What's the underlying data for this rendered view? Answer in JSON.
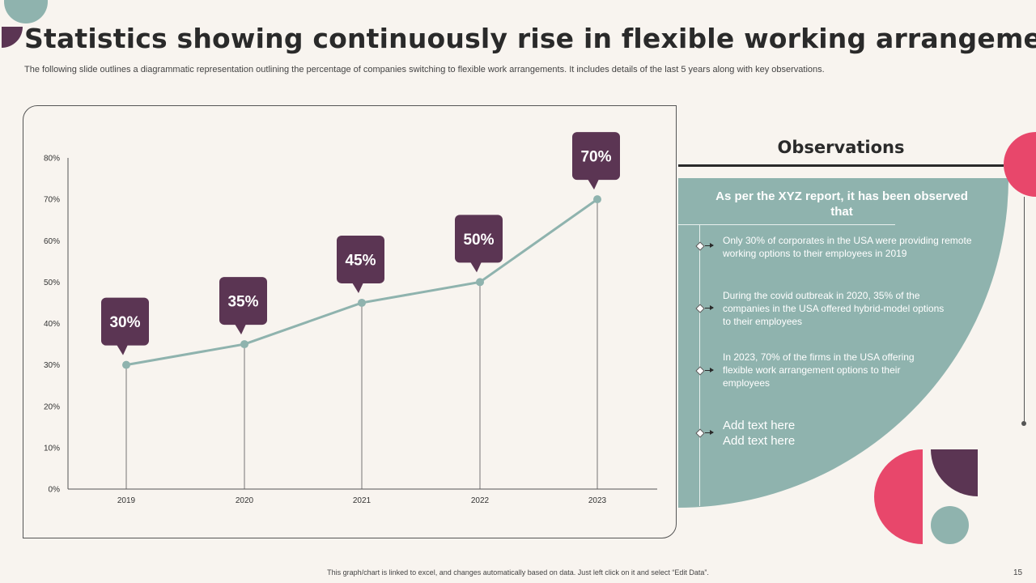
{
  "title": "Statistics showing continuously rise in flexible working arrangement",
  "subtitle": "The following slide outlines a diagrammatic representation outlining the percentage of companies switching to flexible work arrangements. It includes details of the last 5 years along with key observations.",
  "chart_data": {
    "type": "line",
    "categories": [
      "2019",
      "2020",
      "2021",
      "2022",
      "2023"
    ],
    "values": [
      30,
      35,
      45,
      50,
      70
    ],
    "data_labels": [
      "30%",
      "35%",
      "45%",
      "50%",
      "70%"
    ],
    "ylim": [
      0,
      80
    ],
    "yticks": [
      "0%",
      "10%",
      "20%",
      "30%",
      "40%",
      "50%",
      "60%",
      "70%",
      "80%"
    ],
    "title": "",
    "xlabel": "",
    "ylabel": "",
    "grid": false
  },
  "observations": {
    "header": "Observations",
    "intro": "As per the XYZ report, it has been observed that",
    "items": [
      "Only 30% of corporates in the USA were providing remote working options to their employees in 2019",
      "During the covid outbreak in 2020, 35% of the companies in the USA offered hybrid-model options to their employees",
      "In 2023, 70% of the firms in the USA offering flexible work arrangement options to their employees",
      "Add text here Add text here"
    ]
  },
  "footer_note": "This graph/chart is linked to excel, and changes automatically based on data. Just left click on it and select “Edit Data”.",
  "page_number": "15",
  "colors": {
    "background": "#f8f4ef",
    "teal": "#8fb3ae",
    "purple": "#5b3553",
    "pink": "#e8476b",
    "line": "#8fb3ae"
  }
}
